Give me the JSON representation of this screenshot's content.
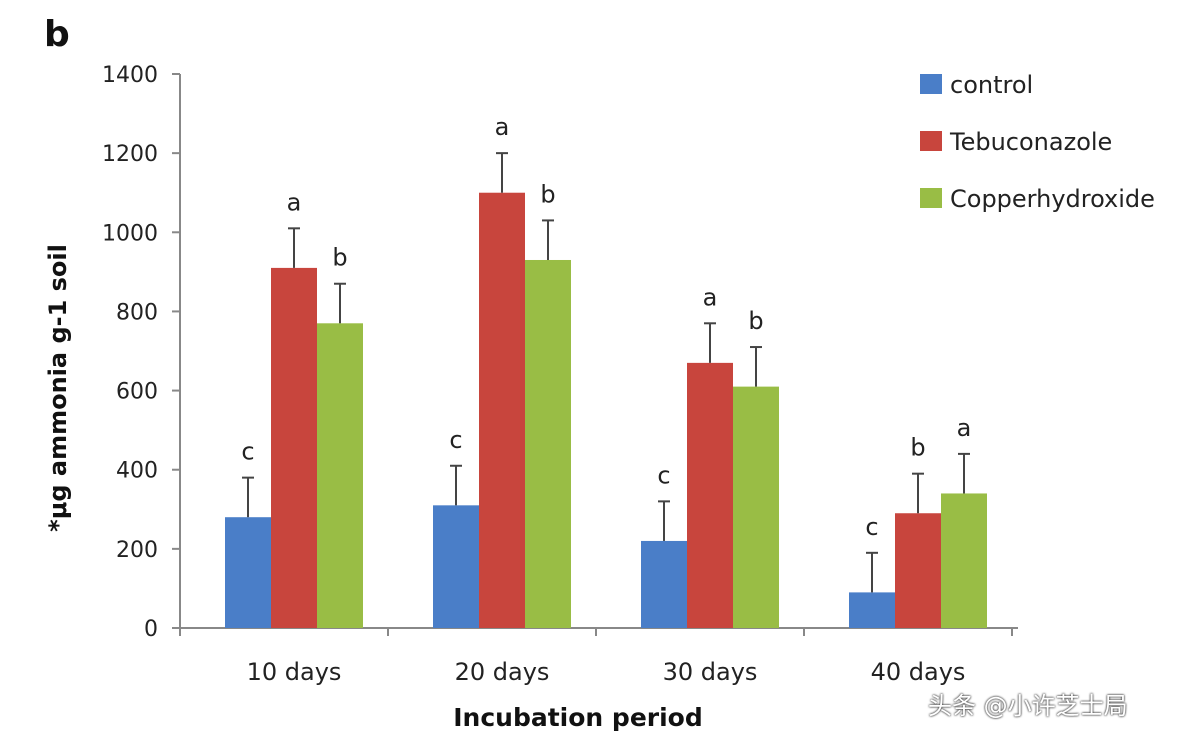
{
  "panel_label": "b",
  "watermark": "头条 @小许芝士局",
  "chart_data": {
    "type": "bar",
    "title": "",
    "xlabel": "Incubation period",
    "ylabel": "*μg ammonia g-1 soil",
    "ylim": [
      0,
      1400
    ],
    "yticks": [
      0,
      200,
      400,
      600,
      800,
      1000,
      1200,
      1400
    ],
    "grid": false,
    "legend_position": "top-right",
    "categories": [
      "10 days",
      "20 days",
      "30 days",
      "40 days"
    ],
    "series": [
      {
        "name": "control",
        "color": "#4a7ec8",
        "values": [
          280,
          310,
          220,
          90
        ],
        "errors": [
          100,
          100,
          100,
          100
        ],
        "letters": [
          "c",
          "c",
          "c",
          "c"
        ]
      },
      {
        "name": "Tebuconazole",
        "color": "#c8453d",
        "values": [
          910,
          1100,
          670,
          290
        ],
        "errors": [
          100,
          100,
          100,
          100
        ],
        "letters": [
          "a",
          "a",
          "a",
          "b"
        ]
      },
      {
        "name": "Copperhydroxide",
        "color": "#99bd45",
        "values": [
          770,
          930,
          610,
          340
        ],
        "errors": [
          100,
          100,
          100,
          100
        ],
        "letters": [
          "b",
          "b",
          "b",
          "a"
        ]
      }
    ]
  }
}
